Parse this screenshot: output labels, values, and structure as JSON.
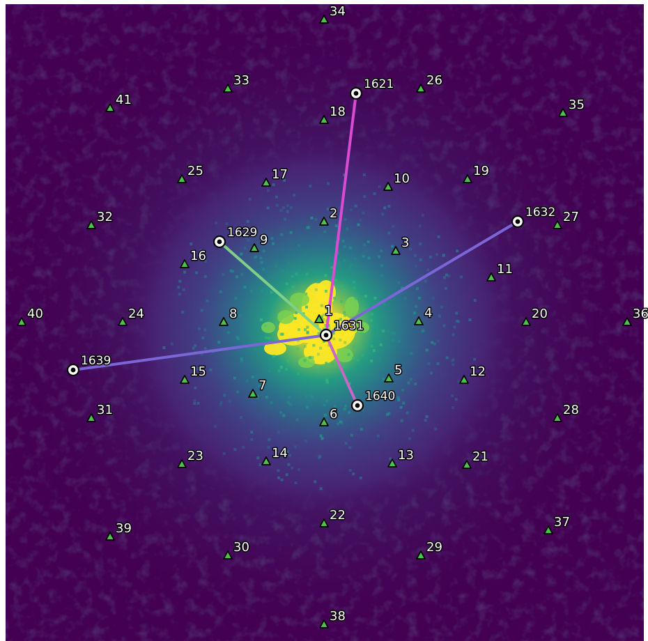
{
  "colors": {
    "background": "#440154",
    "marker_fill": "#4cc44c",
    "marker_stroke": "#000000",
    "label_fill": "#ffffff",
    "label_stroke": "#000000"
  },
  "intensity_map": {
    "colormap": "viridis",
    "peak_level": 1.0
  },
  "stations": [
    "1",
    "2",
    "3",
    "4",
    "5",
    "6",
    "7",
    "8",
    "9",
    "10",
    "11",
    "12",
    "13",
    "14",
    "15",
    "16",
    "17",
    "18",
    "19",
    "20",
    "21",
    "22",
    "23",
    "24",
    "25",
    "26",
    "27",
    "28",
    "29",
    "30",
    "31",
    "32",
    "33",
    "34",
    "35",
    "36",
    "37",
    "38",
    "39",
    "40",
    "41"
  ],
  "events": [
    "1621",
    "1629",
    "1631",
    "1632",
    "1639",
    "1640"
  ],
  "links": [
    {
      "from": "1631",
      "to": "1621",
      "color": "#d84bd2"
    },
    {
      "from": "1631",
      "to": "1629",
      "color": "#7fcf88"
    },
    {
      "from": "1631",
      "to": "1632",
      "color": "#7b66d8"
    },
    {
      "from": "1631",
      "to": "1639",
      "color": "#7b66d8"
    },
    {
      "from": "1631",
      "to": "1640",
      "color": "#c966c8"
    }
  ]
}
